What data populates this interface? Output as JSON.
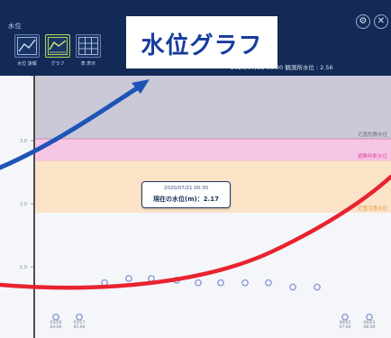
{
  "app": {
    "title": "水位",
    "header_buttons": [
      {
        "icon": "settings-icon",
        "symbol": "⚙"
      },
      {
        "icon": "close-icon",
        "symbol": "✕"
      }
    ],
    "view_buttons": [
      {
        "icon": "chart-view-icon",
        "label": "水位 速報"
      },
      {
        "icon": "graph-view-icon",
        "label": "グラフ"
      },
      {
        "icon": "table-view-icon",
        "label": "表 表示"
      }
    ],
    "datetime": "2020/07/31 00:00 観測所水位 : 2.56"
  },
  "callout": {
    "text": "水位グラフ"
  },
  "chart_data": {
    "type": "line",
    "y_ticks": [
      "",
      "3.0",
      "2.0",
      "1.0"
    ],
    "thresholds": [
      {
        "label": "氾濫危険水位",
        "color": "#c9c9d8"
      },
      {
        "label": "避難判断水位",
        "color": "#f7c6e4"
      },
      {
        "label": "氾濫注意水位",
        "color": "#fbe3c8"
      }
    ],
    "points": [
      0.15,
      0.15,
      0.55,
      0.6,
      0.6,
      0.58,
      0.55,
      0.55,
      0.55,
      0.55,
      0.5,
      0.5,
      0.5,
      0.5,
      0.15,
      0.15
    ],
    "tooltip": {
      "date": "2020/07/21 00:30",
      "value": "現在の水位(m)：2.17"
    },
    "x_labels": [
      "05/26 04:00",
      "05/27 05:00",
      "",
      "",
      "",
      "",
      "",
      "",
      "",
      "",
      "",
      "",
      "",
      "",
      "06/02 07:00",
      "06/03 08:00"
    ]
  },
  "colors": {
    "header": "#132a57",
    "blue_arrow": "#1d54b6",
    "red_curve": "#e8232f",
    "markers": "#8c9ad6"
  }
}
